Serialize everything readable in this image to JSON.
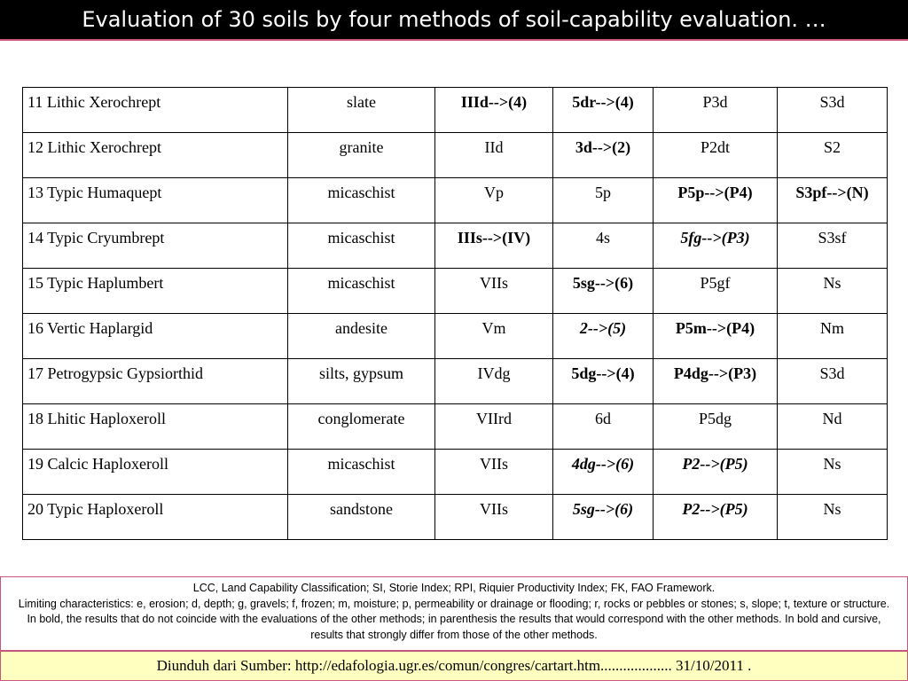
{
  "title": "Evaluation of 30 soils by four methods of soil-capability evaluation. …",
  "rows": [
    {
      "soil": "11 Lithic Xerochrept",
      "rock": "slate",
      "lcc": "IIId-->(4)",
      "si": "5dr-->(4)",
      "rpi": "P3d",
      "fk": "S3d"
    },
    {
      "soil": "12 Lithic Xerochrept",
      "rock": "granite",
      "lcc": "IId",
      "si": "3d-->(2)",
      "rpi": "P2dt",
      "fk": "S2"
    },
    {
      "soil": "13 Typic Humaquept",
      "rock": "micaschist",
      "lcc": "Vp",
      "si": "5p",
      "rpi": "P5p-->(P4)",
      "fk": "S3pf-->(N)"
    },
    {
      "soil": "14 Typic Cryumbrept",
      "rock": "micaschist",
      "lcc": "IIIs-->(IV)",
      "si": "4s",
      "rpi": "5fg-->(P3)",
      "fk": "S3sf"
    },
    {
      "soil": "15 Typic Haplumbert",
      "rock": "micaschist",
      "lcc": "VIIs",
      "si": "5sg-->(6)",
      "rpi": "P5gf",
      "fk": "Ns"
    },
    {
      "soil": "16 Vertic Haplargid",
      "rock": "andesite",
      "lcc": "Vm",
      "si": "2-->(5)",
      "rpi": "P5m-->(P4)",
      "fk": "Nm"
    },
    {
      "soil": "17 Petrogypsic Gypsiorthid",
      "rock": "silts, gypsum",
      "lcc": "IVdg",
      "si": "5dg-->(4)",
      "rpi": "P4dg-->(P3)",
      "fk": "S3d"
    },
    {
      "soil": "18 Lhitic Haploxeroll",
      "rock": "conglomerate",
      "lcc": "VIIrd",
      "si": "6d",
      "rpi": "P5dg",
      "fk": "Nd"
    },
    {
      "soil": "19 Calcic Haploxeroll",
      "rock": "micaschist",
      "lcc": "VIIs",
      "si": "4dg-->(6)",
      "rpi": "P2-->(P5)",
      "fk": "Ns"
    },
    {
      "soil": "20 Typic Haploxeroll",
      "rock": "sandstone",
      "lcc": "VIIs",
      "si": "5sg-->(6)",
      "rpi": "P2-->(P5)",
      "fk": "Ns"
    }
  ],
  "notes": {
    "line1": "LCC, Land Capability Classification; SI, Storie Index; RPI, Riquier Productivity Index; FK, FAO Framework.",
    "line2": "Limiting characteristics: e, erosion; d, depth; g, gravels; f, frozen; m, moisture; p, permeability or drainage or flooding; r, rocks or pebbles or stones; s, slope; t, texture or structure. In bold, the results that do not coincide with the evaluations of the other methods; in parenthesis the results that would correspond with the other methods. In bold and cursive, results that strongly differ from those of the other methods."
  },
  "source": "Diunduh dari Sumber: http://edafologia.ugr.es/comun/congres/cartart.htm................... 31/10/2011 ."
}
